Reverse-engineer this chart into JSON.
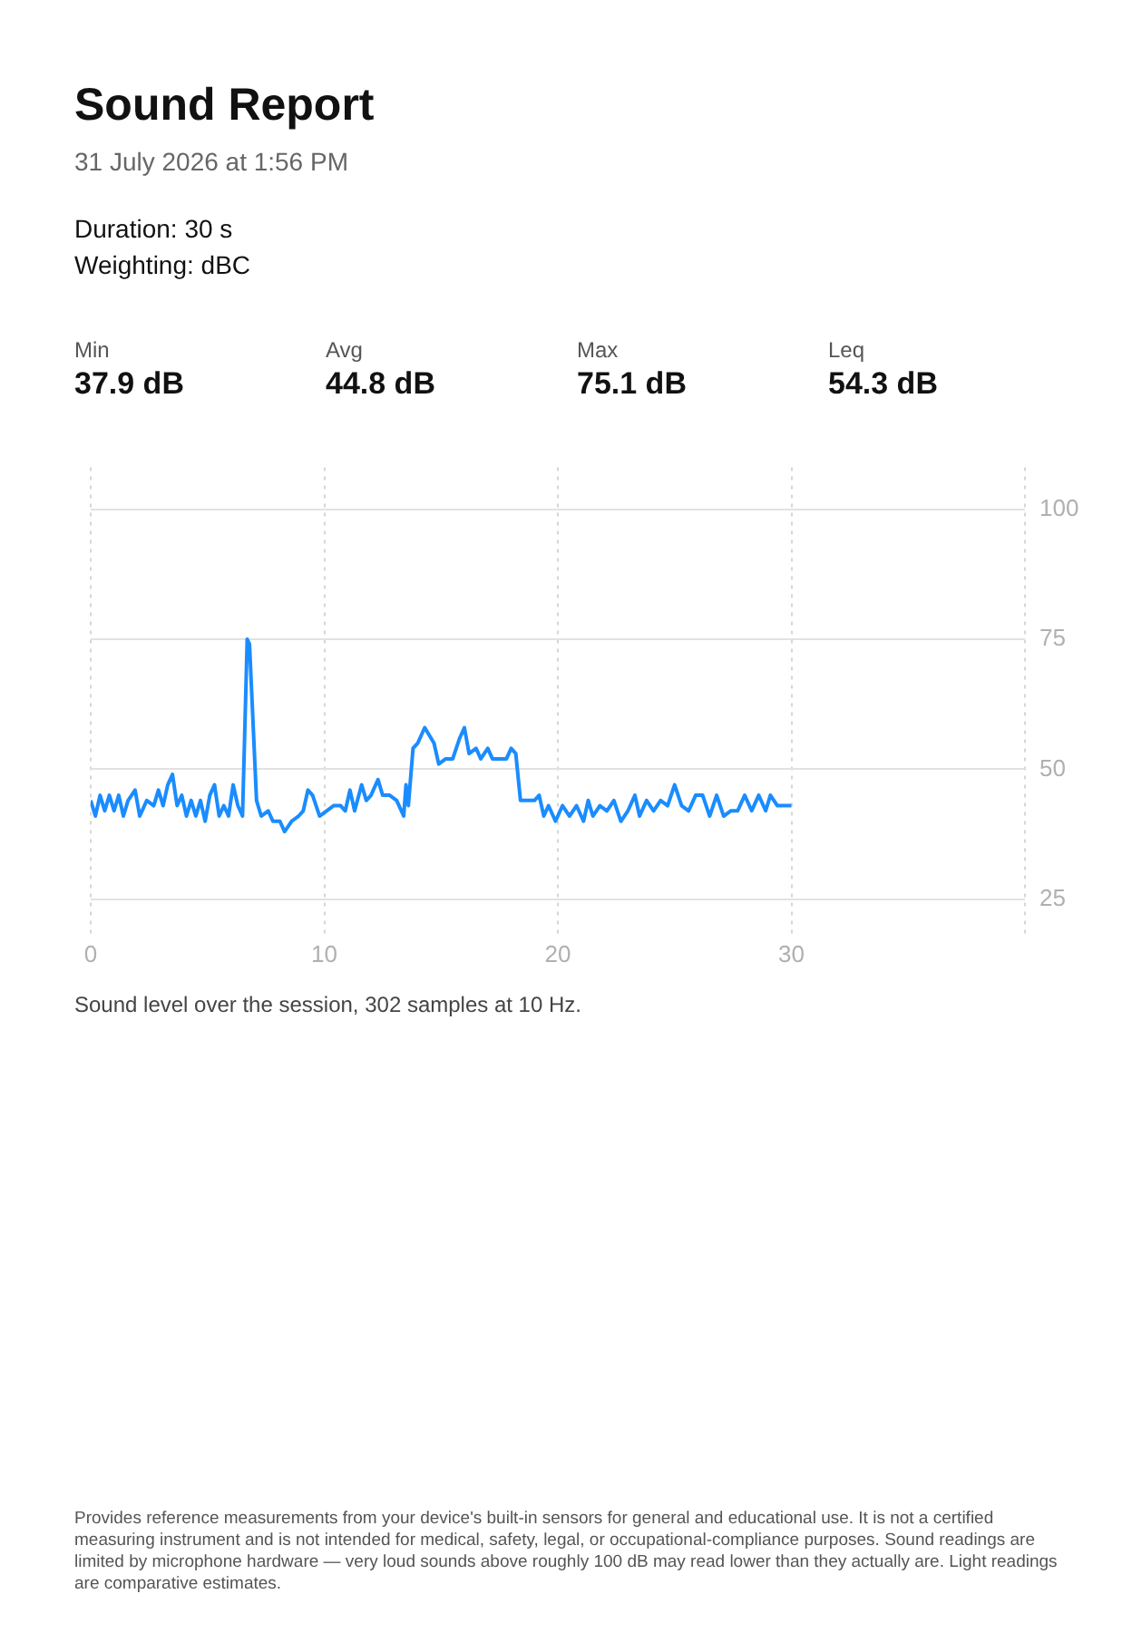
{
  "chart_data": {
    "type": "line",
    "title": "Sound Report",
    "subtitle": "31 July 2026 at 1:56 PM",
    "annotations": [
      "Duration: 30 s",
      "Weighting: dBC",
      "Min",
      "37.9 dB",
      "Avg",
      "44.8 dB",
      "Max",
      "75.1 dB",
      "Leq",
      "54.3 dB",
      "Sound level over the session, 302 samples at 10 Hz.",
      "Provides reference measurements from your device's built-in sensors for general and educational use. It is not a certified measuring instrument and is not intended for medical, safety, legal, or occupational-compliance purposes. Sound readings are limited by microphone hardware — very loud sounds above roughly 100 dB may read lower than they actually are. Light readings are comparative estimates."
    ],
    "x": [
      0,
      0.2,
      0.4,
      0.6,
      0.8,
      1.0,
      1.2,
      1.4,
      1.6,
      1.9,
      2.1,
      2.4,
      2.7,
      2.9,
      3.1,
      3.3,
      3.5,
      3.7,
      3.9,
      4.1,
      4.3,
      4.5,
      4.7,
      4.9,
      5.1,
      5.3,
      5.5,
      5.7,
      5.9,
      6.1,
      6.3,
      6.5,
      6.7,
      6.8,
      7.1,
      7.3,
      7.6,
      7.8,
      8.1,
      8.3,
      8.6,
      8.9,
      9.1,
      9.3,
      9.5,
      9.8,
      10.1,
      10.4,
      10.7,
      10.9,
      11.1,
      11.3,
      11.6,
      11.8,
      12.0,
      12.3,
      12.5,
      12.8,
      13.1,
      13.4,
      13.5,
      13.6,
      13.8,
      14.0,
      14.3,
      14.7,
      14.9,
      15.2,
      15.5,
      15.8,
      16.0,
      16.2,
      16.5,
      16.7,
      17.0,
      17.2,
      17.5,
      17.8,
      18.0,
      18.2,
      18.4,
      18.7,
      19.0,
      19.2,
      19.4,
      19.6,
      19.9,
      20.2,
      20.5,
      20.8,
      21.1,
      21.3,
      21.5,
      21.8,
      22.1,
      22.4,
      22.7,
      23.0,
      23.3,
      23.5,
      23.8,
      24.1,
      24.4,
      24.7,
      25.0,
      25.3,
      25.6,
      25.9,
      26.2,
      26.5,
      26.8,
      27.1,
      27.4,
      27.7,
      28.0,
      28.3,
      28.6,
      28.9,
      29.1,
      29.4,
      29.6,
      30.0
    ],
    "series": [
      {
        "color": "#1a8cff",
        "values": [
          44,
          41,
          45,
          42,
          45,
          42,
          45,
          41,
          44,
          46,
          41,
          44,
          43,
          46,
          43,
          47,
          49,
          43,
          45,
          41,
          44,
          41,
          44,
          40,
          45,
          47,
          41,
          43,
          41,
          47,
          43,
          41,
          75,
          74,
          44,
          41,
          42,
          40,
          40,
          38,
          40,
          41,
          42,
          46,
          45,
          41,
          42,
          43,
          43,
          42,
          46,
          42,
          47,
          44,
          45,
          48,
          45,
          45,
          44,
          41,
          47,
          43,
          54,
          55,
          58,
          55,
          51,
          52,
          52,
          56,
          58,
          53,
          54,
          52,
          54,
          52,
          52,
          52,
          54,
          53,
          44,
          44,
          44,
          45,
          41,
          43,
          40,
          43,
          41,
          43,
          40,
          44,
          41,
          43,
          42,
          44,
          40,
          42,
          45,
          41,
          44,
          42,
          44,
          43,
          47,
          43,
          42,
          45,
          45,
          41,
          45,
          41,
          42,
          42,
          45,
          42,
          45,
          42,
          45,
          43,
          43,
          43
        ]
      }
    ],
    "xlim": [
      0,
      40
    ],
    "xticks": [
      0,
      10,
      20,
      30,
      {
        "value": 40,
        "label": null
      }
    ],
    "ylim": [
      18,
      108
    ],
    "yticks": [
      25,
      50,
      75,
      100
    ],
    "grid": true,
    "legend": false,
    "marker": "none",
    "line_style": "solid"
  }
}
